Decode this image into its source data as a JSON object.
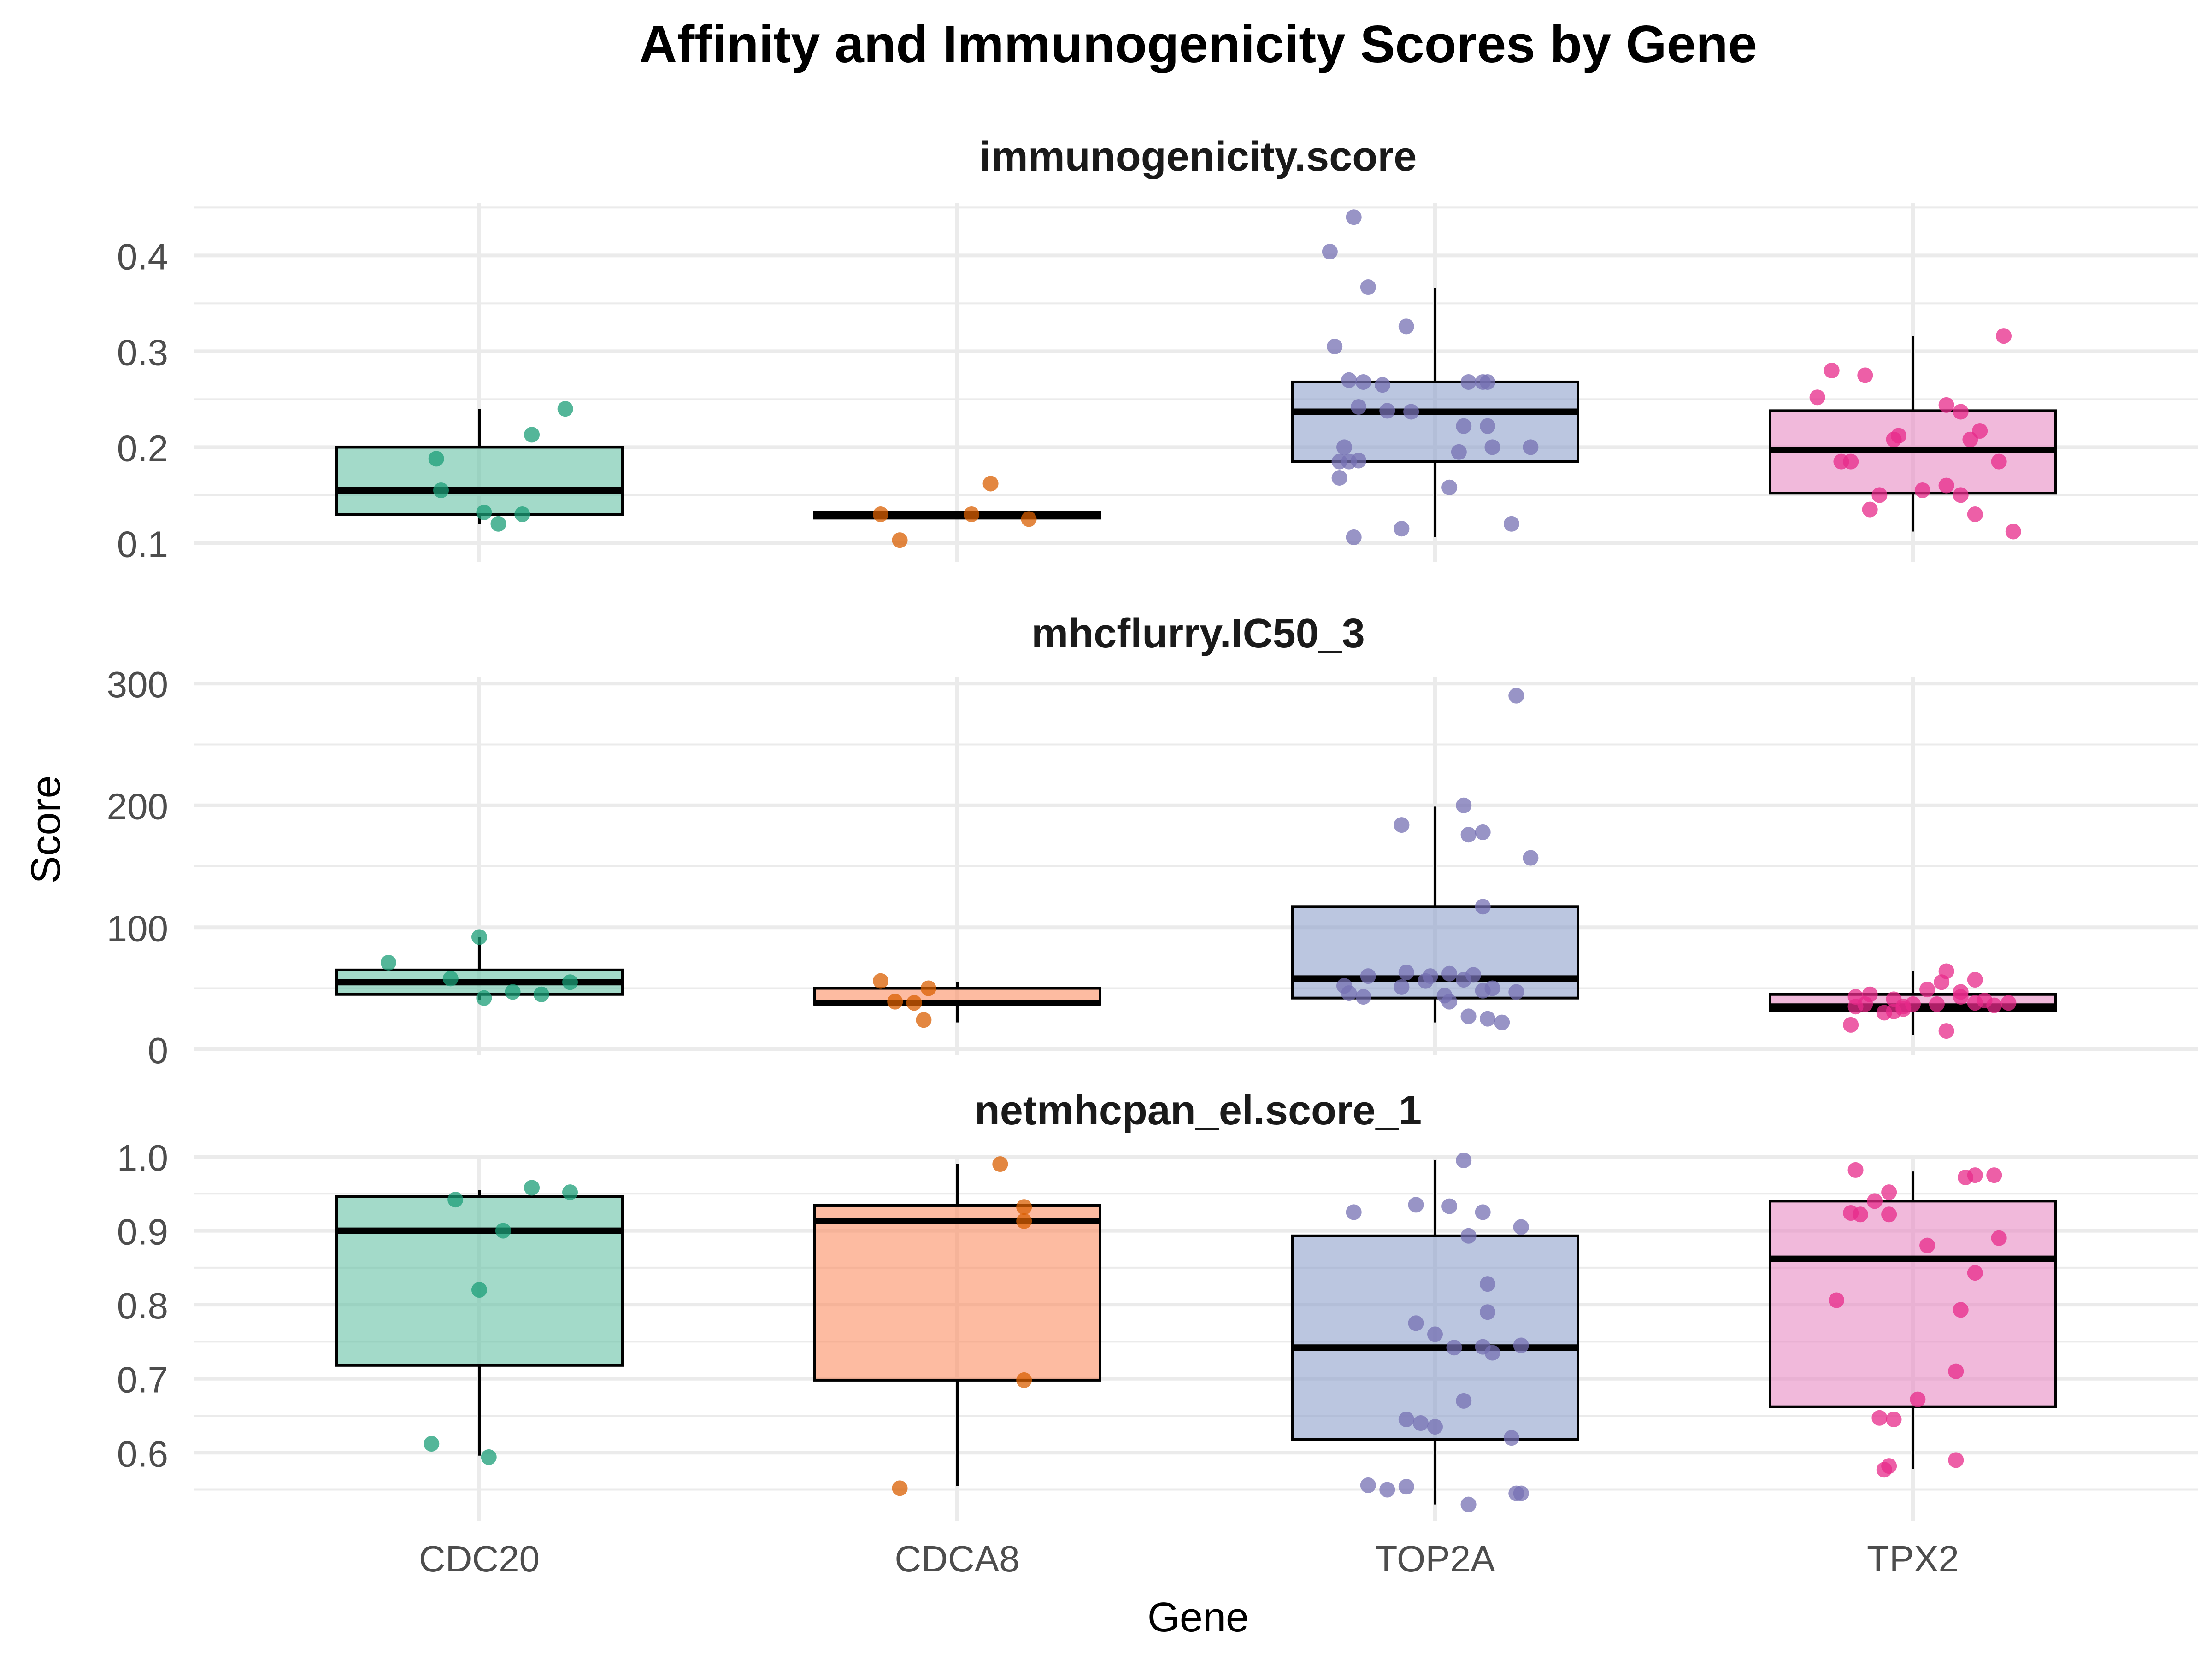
{
  "chart_data": {
    "type": "box",
    "title": "Affinity and Immunogenicity Scores by Gene",
    "xlabel": "Gene",
    "ylabel": "Score",
    "categories": [
      "CDC20",
      "CDCA8",
      "TOP2A",
      "TPX2"
    ],
    "colors": {
      "CDC20": "#66C2A5",
      "CDCA8": "#FC8D62",
      "TOP2A": "#8DA0CB",
      "TPX2": "#E78AC3"
    },
    "point_colors": {
      "CDC20": "#1B9E77",
      "CDCA8": "#D95F02",
      "TOP2A": "#7570B3",
      "TPX2": "#E7298A"
    },
    "grid": true,
    "facets": [
      {
        "name": "immunogenicity.score",
        "ylim": [
          0.08,
          0.455
        ],
        "yticks": [
          0.1,
          0.2,
          0.3,
          0.4
        ],
        "ytick_labels": [
          "0.1",
          "0.2",
          "0.3",
          "0.4"
        ],
        "boxes": [
          {
            "category": "CDC20",
            "whisker_low": 0.12,
            "q1": 0.13,
            "median": 0.155,
            "q3": 0.2,
            "whisker_high": 0.24,
            "points": [
              [
                -0.09,
                0.188
              ],
              [
                -0.08,
                0.155
              ],
              [
                0.01,
                0.132
              ],
              [
                0.04,
                0.12
              ],
              [
                0.09,
                0.13
              ],
              [
                0.11,
                0.213
              ],
              [
                0.18,
                0.24
              ]
            ]
          },
          {
            "category": "CDCA8",
            "whisker_low": 0.125,
            "q1": 0.126,
            "median": 0.13,
            "q3": 0.132,
            "whisker_high": 0.133,
            "points": [
              [
                -0.16,
                0.13
              ],
              [
                -0.12,
                0.103
              ],
              [
                0.03,
                0.13
              ],
              [
                0.07,
                0.162
              ],
              [
                0.15,
                0.125
              ]
            ]
          },
          {
            "category": "TOP2A",
            "whisker_low": 0.106,
            "q1": 0.185,
            "median": 0.237,
            "q3": 0.268,
            "whisker_high": 0.366,
            "points": [
              [
                -0.17,
                0.44
              ],
              [
                -0.22,
                0.404
              ],
              [
                -0.14,
                0.367
              ],
              [
                -0.21,
                0.305
              ],
              [
                -0.18,
                0.27
              ],
              [
                -0.15,
                0.268
              ],
              [
                -0.11,
                0.265
              ],
              [
                -0.16,
                0.242
              ],
              [
                -0.1,
                0.238
              ],
              [
                -0.05,
                0.237
              ],
              [
                0.07,
                0.268
              ],
              [
                0.1,
                0.268
              ],
              [
                0.11,
                0.268
              ],
              [
                0.12,
                0.2
              ],
              [
                0.05,
                0.195
              ],
              [
                0.11,
                0.222
              ],
              [
                0.06,
                0.222
              ],
              [
                -0.19,
                0.2
              ],
              [
                -0.2,
                0.185
              ],
              [
                -0.18,
                0.185
              ],
              [
                -0.2,
                0.168
              ],
              [
                -0.16,
                0.186
              ],
              [
                0.03,
                0.158
              ],
              [
                -0.17,
                0.106
              ],
              [
                -0.07,
                0.115
              ],
              [
                0.16,
                0.12
              ],
              [
                0.2,
                0.2
              ],
              [
                -0.06,
                0.326
              ]
            ]
          },
          {
            "category": "TPX2",
            "whisker_low": 0.112,
            "q1": 0.152,
            "median": 0.197,
            "q3": 0.238,
            "whisker_high": 0.316,
            "points": [
              [
                -0.2,
                0.252
              ],
              [
                -0.17,
                0.28
              ],
              [
                -0.15,
                0.185
              ],
              [
                -0.13,
                0.185
              ],
              [
                -0.09,
                0.135
              ],
              [
                -0.07,
                0.15
              ],
              [
                -0.03,
                0.212
              ],
              [
                -0.04,
                0.208
              ],
              [
                0.07,
                0.16
              ],
              [
                0.1,
                0.15
              ],
              [
                0.07,
                0.244
              ],
              [
                0.1,
                0.237
              ],
              [
                0.14,
                0.217
              ],
              [
                0.12,
                0.208
              ],
              [
                0.18,
                0.185
              ],
              [
                0.19,
                0.316
              ],
              [
                0.13,
                0.13
              ],
              [
                0.21,
                0.112
              ],
              [
                0.02,
                0.155
              ],
              [
                -0.1,
                0.275
              ]
            ]
          }
        ]
      },
      {
        "name": "mhcflurry.IC50_3",
        "ylim": [
          -5,
          305
        ],
        "yticks": [
          0,
          100,
          200,
          300
        ],
        "ytick_labels": [
          "0",
          "100",
          "200",
          "300"
        ],
        "boxes": [
          {
            "category": "CDC20",
            "whisker_low": 40,
            "q1": 45,
            "median": 55,
            "q3": 65,
            "whisker_high": 92,
            "points": [
              [
                -0.19,
                71
              ],
              [
                -0.06,
                58
              ],
              [
                0.01,
                42
              ],
              [
                0.07,
                47
              ],
              [
                0.13,
                45
              ],
              [
                0.19,
                55
              ],
              [
                0.0,
                92
              ]
            ]
          },
          {
            "category": "CDCA8",
            "whisker_low": 22,
            "q1": 37,
            "median": 38,
            "q3": 50,
            "whisker_high": 55,
            "points": [
              [
                -0.16,
                56
              ],
              [
                -0.13,
                39
              ],
              [
                -0.09,
                38
              ],
              [
                -0.07,
                24
              ],
              [
                -0.06,
                50
              ]
            ]
          },
          {
            "category": "TOP2A",
            "whisker_low": 22,
            "q1": 42,
            "median": 58,
            "q3": 117,
            "whisker_high": 199,
            "points": [
              [
                0.17,
                290
              ],
              [
                0.06,
                200
              ],
              [
                -0.07,
                184
              ],
              [
                0.1,
                178
              ],
              [
                0.07,
                176
              ],
              [
                0.2,
                157
              ],
              [
                0.1,
                117
              ],
              [
                -0.14,
                60
              ],
              [
                -0.06,
                63
              ],
              [
                -0.01,
                60
              ],
              [
                0.03,
                62
              ],
              [
                0.08,
                61
              ],
              [
                0.06,
                57
              ],
              [
                -0.19,
                52
              ],
              [
                -0.18,
                46
              ],
              [
                -0.15,
                43
              ],
              [
                -0.07,
                51
              ],
              [
                0.02,
                44
              ],
              [
                0.1,
                48
              ],
              [
                0.12,
                50
              ],
              [
                0.03,
                39
              ],
              [
                0.07,
                27
              ],
              [
                0.11,
                25
              ],
              [
                0.14,
                22
              ],
              [
                0.17,
                47
              ],
              [
                -0.02,
                56
              ]
            ]
          },
          {
            "category": "TPX2",
            "whisker_low": 12,
            "q1": 32,
            "median": 35,
            "q3": 45,
            "whisker_high": 64,
            "points": [
              [
                -0.12,
                35
              ],
              [
                -0.13,
                20
              ],
              [
                -0.1,
                37
              ],
              [
                -0.04,
                41
              ],
              [
                -0.06,
                30
              ],
              [
                -0.02,
                33
              ],
              [
                0.05,
                37
              ],
              [
                0.1,
                43
              ],
              [
                0.1,
                47
              ],
              [
                0.15,
                40
              ],
              [
                0.13,
                57
              ],
              [
                0.13,
                38
              ],
              [
                0.03,
                49
              ],
              [
                0.06,
                55
              ],
              [
                0.07,
                64
              ],
              [
                -0.12,
                43
              ],
              [
                -0.04,
                31
              ],
              [
                0.07,
                15
              ],
              [
                -0.02,
                35
              ],
              [
                0.17,
                36
              ],
              [
                0.2,
                38
              ],
              [
                -0.09,
                45
              ],
              [
                0.0,
                37
              ]
            ]
          }
        ]
      },
      {
        "name": "netmhcpan_el.score_1",
        "ylim": [
          0.508,
          1.0
        ],
        "yticks": [
          0.6,
          0.7,
          0.8,
          0.9,
          1.0
        ],
        "ytick_labels": [
          "0.6",
          "0.7",
          "0.8",
          "0.9",
          "1.0"
        ],
        "boxes": [
          {
            "category": "CDC20",
            "whisker_low": 0.596,
            "q1": 0.718,
            "median": 0.9,
            "q3": 0.946,
            "whisker_high": 0.955,
            "points": [
              [
                -0.05,
                0.942
              ],
              [
                0.11,
                0.958
              ],
              [
                0.05,
                0.9
              ],
              [
                0.19,
                0.952
              ],
              [
                0.0,
                0.82
              ],
              [
                -0.1,
                0.612
              ],
              [
                0.02,
                0.594
              ]
            ]
          },
          {
            "category": "CDCA8",
            "whisker_low": 0.555,
            "q1": 0.698,
            "median": 0.913,
            "q3": 0.934,
            "whisker_high": 0.99,
            "points": [
              [
                0.09,
                0.99
              ],
              [
                0.14,
                0.932
              ],
              [
                0.14,
                0.913
              ],
              [
                0.14,
                0.698
              ],
              [
                -0.12,
                0.552
              ]
            ]
          },
          {
            "category": "TOP2A",
            "whisker_low": 0.53,
            "q1": 0.618,
            "median": 0.742,
            "q3": 0.893,
            "whisker_high": 0.995,
            "points": [
              [
                0.06,
                0.995
              ],
              [
                -0.17,
                0.925
              ],
              [
                -0.04,
                0.935
              ],
              [
                0.03,
                0.933
              ],
              [
                0.1,
                0.925
              ],
              [
                0.07,
                0.893
              ],
              [
                0.18,
                0.905
              ],
              [
                0.11,
                0.828
              ],
              [
                0.11,
                0.79
              ],
              [
                -0.04,
                0.775
              ],
              [
                0.0,
                0.76
              ],
              [
                0.1,
                0.743
              ],
              [
                0.18,
                0.745
              ],
              [
                0.12,
                0.735
              ],
              [
                0.06,
                0.67
              ],
              [
                -0.06,
                0.645
              ],
              [
                -0.03,
                0.64
              ],
              [
                0.0,
                0.635
              ],
              [
                0.16,
                0.62
              ],
              [
                -0.14,
                0.556
              ],
              [
                -0.1,
                0.55
              ],
              [
                -0.06,
                0.554
              ],
              [
                0.07,
                0.53
              ],
              [
                0.18,
                0.545
              ],
              [
                0.17,
                0.545
              ],
              [
                0.04,
                0.742
              ]
            ]
          },
          {
            "category": "TPX2",
            "whisker_low": 0.578,
            "q1": 0.662,
            "median": 0.862,
            "q3": 0.94,
            "whisker_high": 0.98,
            "points": [
              [
                -0.12,
                0.982
              ],
              [
                -0.05,
                0.952
              ],
              [
                -0.08,
                0.94
              ],
              [
                -0.11,
                0.922
              ],
              [
                -0.05,
                0.922
              ],
              [
                0.13,
                0.975
              ],
              [
                0.11,
                0.972
              ],
              [
                0.17,
                0.975
              ],
              [
                0.03,
                0.88
              ],
              [
                0.18,
                0.89
              ],
              [
                0.13,
                0.843
              ],
              [
                -0.16,
                0.806
              ],
              [
                0.1,
                0.793
              ],
              [
                0.09,
                0.71
              ],
              [
                0.01,
                0.672
              ],
              [
                -0.07,
                0.647
              ],
              [
                -0.04,
                0.645
              ],
              [
                -0.05,
                0.582
              ],
              [
                -0.06,
                0.577
              ],
              [
                0.09,
                0.59
              ],
              [
                -0.13,
                0.924
              ]
            ]
          }
        ]
      }
    ]
  }
}
